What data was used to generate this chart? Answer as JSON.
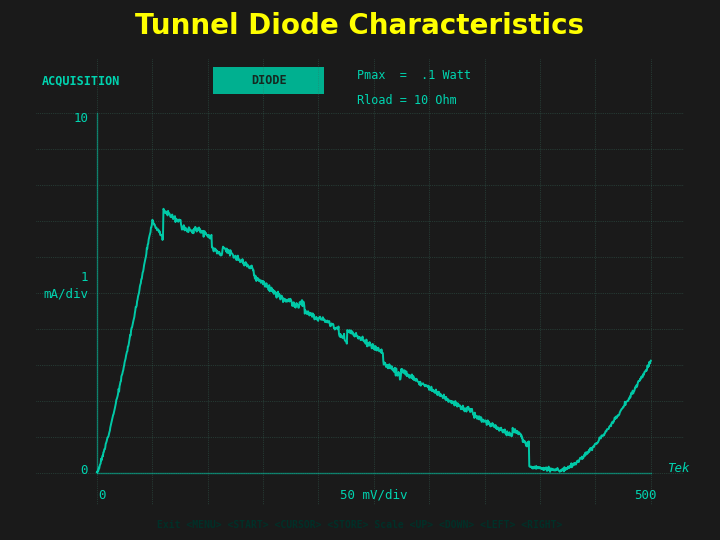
{
  "title": "Tunnel Diode Characteristics",
  "title_color": "#FFFF00",
  "title_bg": "#000000",
  "title_fontsize": 20,
  "screen_bg": "#2a3830",
  "outer_bg": "#1a1a1a",
  "grid_color": "#3a7060",
  "curve_color": "#00d4b0",
  "text_color": "#00d4b0",
  "acquisition_label": "ACQUISITION",
  "diode_label": "DIODE",
  "pmax_label": "Pmax  =  .1 Watt",
  "rload_label": "Rload = 10 Ohm",
  "y_top_label": "10",
  "y_mid_label": "1\nmA/div",
  "y_bot_label": "0",
  "x_left_label": "0",
  "x_mid_label": "50 mV/div",
  "x_right_label": "500",
  "tek_label": "Tek",
  "bottom_bar_label": "Exit <MENU> <START> <CURSOR> <STORE> Scale <UP> <DOWN> <LEFT> <RIGHT>",
  "bottom_bar_bg": "#00a090"
}
